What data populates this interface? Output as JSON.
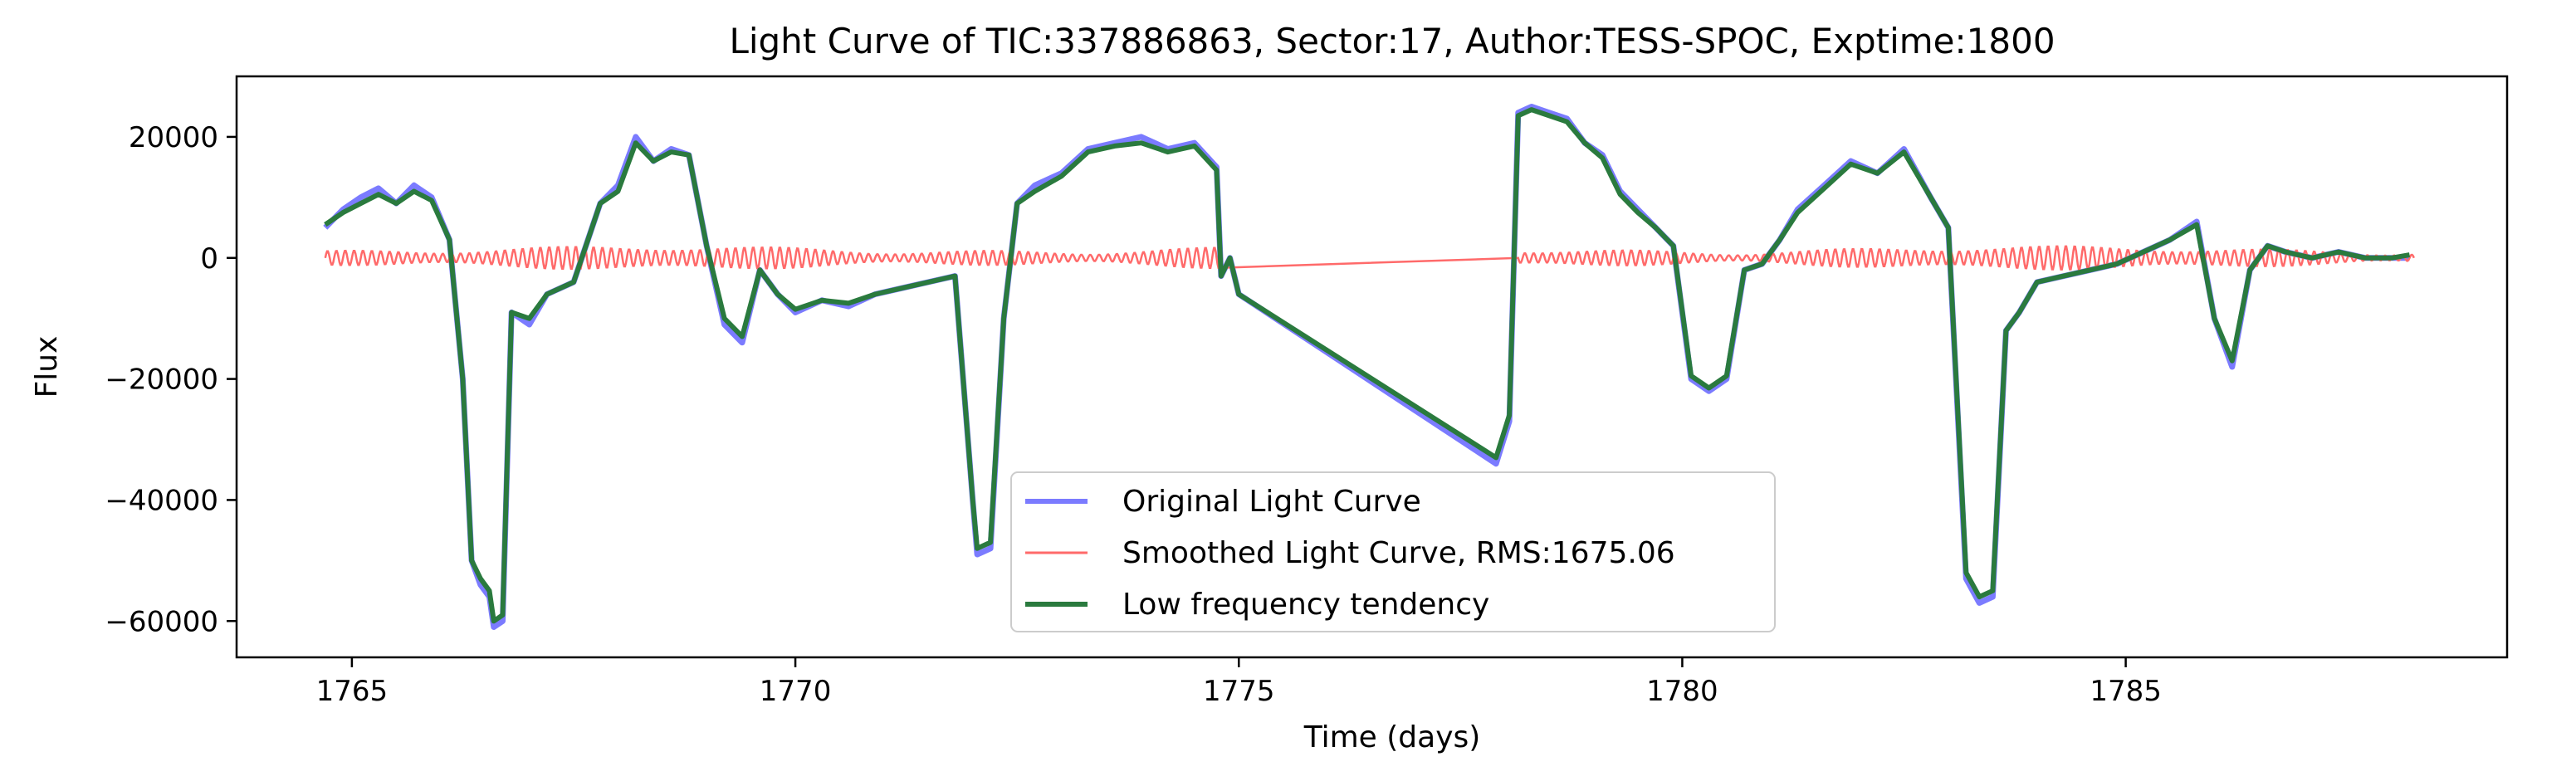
{
  "chart_data": {
    "type": "line",
    "title": "Light Curve of TIC:337886863, Sector:17, Author:TESS-SPOC, Exptime:1800",
    "xlabel": "Time (days)",
    "ylabel": "Flux",
    "xlim": [
      1763.7,
      1789.3
    ],
    "ylim": [
      -66000,
      30000
    ],
    "xticks": [
      1765,
      1770,
      1775,
      1780,
      1785
    ],
    "yticks": [
      20000,
      0,
      -20000,
      -40000,
      -60000
    ],
    "xtick_labels": [
      "1765",
      "1770",
      "1775",
      "1780",
      "1785"
    ],
    "ytick_labels": [
      "20000",
      "0",
      "−20000",
      "−40000",
      "−60000"
    ],
    "grid": false,
    "legend_position": "lower center",
    "series": [
      {
        "name": "Original Light Curve",
        "color": "#7b7bff",
        "x": [
          1764.7,
          1764.9,
          1765.1,
          1765.3,
          1765.5,
          1765.7,
          1765.9,
          1766.1,
          1766.25,
          1766.35,
          1766.45,
          1766.55,
          1766.6,
          1766.7,
          1766.8,
          1767.0,
          1767.2,
          1767.5,
          1767.8,
          1768.0,
          1768.2,
          1768.4,
          1768.6,
          1768.8,
          1769.0,
          1769.2,
          1769.4,
          1769.6,
          1769.8,
          1770.0,
          1770.3,
          1770.6,
          1770.9,
          1771.2,
          1771.5,
          1771.8,
          1772.0,
          1772.05,
          1772.2,
          1772.35,
          1772.5,
          1772.7,
          1773.0,
          1773.3,
          1773.6,
          1773.9,
          1774.2,
          1774.5,
          1774.75,
          1774.8,
          1774.9,
          1775.0,
          1777.9,
          1778.05,
          1778.15,
          1778.3,
          1778.5,
          1778.7,
          1778.9,
          1779.1,
          1779.3,
          1779.5,
          1779.7,
          1779.9,
          1780.1,
          1780.3,
          1780.5,
          1780.7,
          1780.9,
          1781.1,
          1781.3,
          1781.6,
          1781.9,
          1782.2,
          1782.5,
          1782.8,
          1783.0,
          1783.2,
          1783.35,
          1783.5,
          1783.65,
          1783.8,
          1784.0,
          1784.3,
          1784.6,
          1784.9,
          1785.2,
          1785.5,
          1785.8,
          1786.0,
          1786.2,
          1786.4,
          1786.6,
          1786.8,
          1787.1,
          1787.4,
          1787.7,
          1788.0,
          1788.2
        ],
        "y": [
          5000,
          8000,
          10000,
          11500,
          9000,
          12000,
          10000,
          3000,
          -20000,
          -50000,
          -54000,
          -56000,
          -61000,
          -60000,
          -9000,
          -11000,
          -6000,
          -4000,
          9000,
          12000,
          20000,
          16000,
          18000,
          17000,
          2000,
          -11000,
          -14000,
          -2000,
          -6000,
          -9000,
          -7000,
          -8000,
          -6000,
          -5000,
          -4000,
          -3000,
          -40000,
          -49000,
          -48000,
          -10000,
          9000,
          12000,
          14000,
          18000,
          19000,
          20000,
          18000,
          19000,
          15000,
          -3000,
          0,
          -6000,
          -34000,
          -27000,
          24000,
          25000,
          24000,
          23000,
          19000,
          17000,
          11000,
          8000,
          5000,
          2000,
          -20000,
          -22000,
          -20000,
          -2000,
          -1000,
          3000,
          8000,
          12000,
          16000,
          14000,
          18000,
          10000,
          5000,
          -53000,
          -57000,
          -56000,
          -12000,
          -9000,
          -4000,
          -3000,
          -2000,
          -1000,
          1000,
          3000,
          6000,
          -10000,
          -18000,
          -2000,
          2000,
          1000,
          0,
          1000,
          0,
          0,
          0
        ]
      },
      {
        "name": "Smoothed Light Curve, RMS:1675.06",
        "color": "#ff6a6a",
        "segments": [
          {
            "x_start": 1764.7,
            "x_end": 1774.78,
            "amplitude": 2000,
            "period": 0.1
          },
          {
            "x_start": 1778.15,
            "x_end": 1788.25,
            "amplitude": 2000,
            "period": 0.1
          }
        ],
        "gap_line": {
          "x": [
            1774.78,
            1778.15
          ],
          "y": [
            4000,
            -1000
          ]
        }
      },
      {
        "name": "Low frequency tendency",
        "color": "#2a7a3e",
        "x": [
          1764.7,
          1764.9,
          1765.1,
          1765.3,
          1765.5,
          1765.7,
          1765.9,
          1766.1,
          1766.25,
          1766.35,
          1766.45,
          1766.55,
          1766.6,
          1766.7,
          1766.8,
          1767.0,
          1767.2,
          1767.5,
          1767.8,
          1768.0,
          1768.2,
          1768.4,
          1768.6,
          1768.8,
          1769.0,
          1769.2,
          1769.4,
          1769.6,
          1769.8,
          1770.0,
          1770.3,
          1770.6,
          1770.9,
          1771.2,
          1771.5,
          1771.8,
          1772.0,
          1772.05,
          1772.2,
          1772.35,
          1772.5,
          1772.7,
          1773.0,
          1773.3,
          1773.6,
          1773.9,
          1774.2,
          1774.5,
          1774.75,
          1774.8,
          1774.9,
          1775.0,
          1777.9,
          1778.05,
          1778.15,
          1778.3,
          1778.5,
          1778.7,
          1778.9,
          1779.1,
          1779.3,
          1779.5,
          1779.7,
          1779.9,
          1780.1,
          1780.3,
          1780.5,
          1780.7,
          1780.9,
          1781.1,
          1781.3,
          1781.6,
          1781.9,
          1782.2,
          1782.5,
          1782.8,
          1783.0,
          1783.2,
          1783.35,
          1783.5,
          1783.65,
          1783.8,
          1784.0,
          1784.3,
          1784.6,
          1784.9,
          1785.2,
          1785.5,
          1785.8,
          1786.0,
          1786.2,
          1786.4,
          1786.6,
          1786.8,
          1787.1,
          1787.4,
          1787.7,
          1788.0,
          1788.2
        ],
        "y": [
          5500,
          7500,
          9000,
          10500,
          9000,
          11000,
          9500,
          3000,
          -20000,
          -50000,
          -53000,
          -55000,
          -60000,
          -59000,
          -9000,
          -10000,
          -6000,
          -4000,
          9000,
          11000,
          19000,
          16000,
          17500,
          17000,
          2000,
          -10000,
          -13000,
          -2000,
          -6000,
          -8500,
          -7000,
          -7500,
          -6000,
          -5000,
          -4000,
          -3000,
          -40000,
          -48000,
          -47000,
          -10000,
          9000,
          11000,
          13500,
          17500,
          18500,
          19000,
          17500,
          18500,
          14500,
          -3000,
          0,
          -6000,
          -33000,
          -26000,
          23500,
          24500,
          23500,
          22500,
          19000,
          16500,
          10500,
          7500,
          5000,
          2000,
          -19500,
          -21500,
          -19500,
          -2000,
          -1000,
          3000,
          7500,
          11500,
          15500,
          14000,
          17500,
          10000,
          5000,
          -52000,
          -56000,
          -55000,
          -12000,
          -9000,
          -4000,
          -3000,
          -2000,
          -1000,
          1000,
          3000,
          5500,
          -10000,
          -17000,
          -2000,
          2000,
          1000,
          0,
          1000,
          0,
          0,
          500
        ]
      }
    ]
  }
}
